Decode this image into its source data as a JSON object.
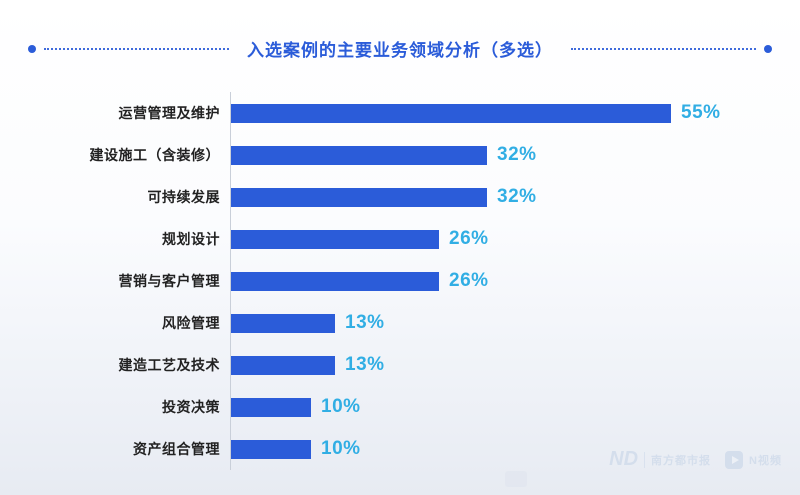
{
  "title": "入选案例的主要业务领域分析（多选）",
  "chart_data": {
    "type": "bar",
    "orientation": "horizontal",
    "title": "入选案例的主要业务领域分析（多选）",
    "categories": [
      "运营管理及维护",
      "建设施工（含装修）",
      "可持续发展",
      "规划设计",
      "营销与客户管理",
      "风险管理",
      "建造工艺及技术",
      "投资决策",
      "资产组合管理"
    ],
    "values": [
      55,
      32,
      32,
      26,
      26,
      13,
      13,
      10,
      10
    ],
    "value_labels": [
      "55%",
      "32%",
      "32%",
      "26%",
      "26%",
      "13%",
      "13%",
      "10%",
      "10%"
    ],
    "value_suffix": "%",
    "xlim": [
      0,
      60
    ],
    "grid": false,
    "legend": "none",
    "bar_color": "#2B5CD9",
    "value_color": "#31AEE4",
    "title_color": "#2B5CD9"
  },
  "watermarks": {
    "left_logo": "ND",
    "left_text": "南方都市报",
    "right_text": "N视频"
  }
}
